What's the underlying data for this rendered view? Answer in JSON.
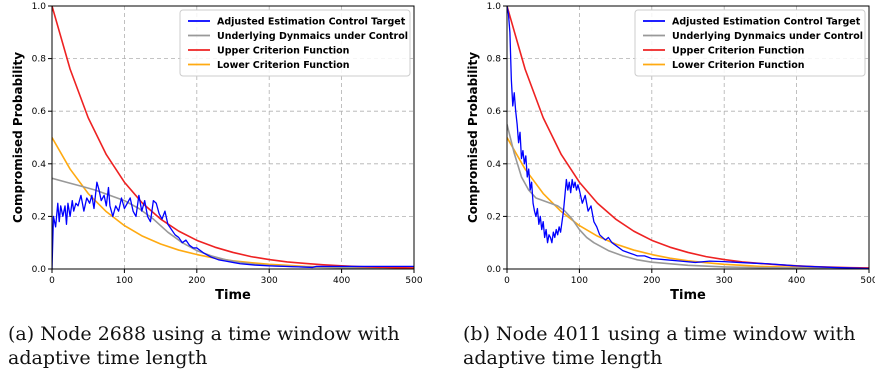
{
  "colors": {
    "adjusted": "#0000ff",
    "underlying": "#999999",
    "upper": "#ee2222",
    "lower": "#ffaa11",
    "grid": "#b0b0b0"
  },
  "chart_data": [
    {
      "type": "line",
      "xlabel": "Time",
      "ylabel": "Compromised Probability",
      "xlim": [
        0,
        500
      ],
      "ylim": [
        0,
        1.0
      ],
      "xticks": [
        "0",
        "100",
        "200",
        "300",
        "400",
        "500"
      ],
      "yticks": [
        "0.0",
        "0.2",
        "0.4",
        "0.6",
        "0.8",
        "1.0"
      ],
      "grid": true,
      "legend_position": "top-right",
      "caption_line1": "(a) Node 2688 using a time window with",
      "caption_line2": "adaptive time length",
      "series": [
        {
          "name": "Adjusted Estimation Control Target",
          "color_key": "adjusted",
          "x": [
            0,
            2,
            5,
            8,
            10,
            12,
            15,
            18,
            20,
            22,
            25,
            28,
            30,
            33,
            36,
            40,
            44,
            48,
            52,
            55,
            58,
            62,
            65,
            68,
            72,
            75,
            78,
            80,
            84,
            88,
            92,
            96,
            100,
            104,
            108,
            112,
            116,
            120,
            124,
            128,
            132,
            136,
            140,
            144,
            148,
            152,
            156,
            160,
            165,
            170,
            175,
            180,
            185,
            190,
            195,
            200,
            210,
            220,
            230,
            240,
            250,
            260,
            280,
            300,
            320,
            340,
            360,
            365,
            370,
            400,
            450,
            500
          ],
          "y": [
            0.0,
            0.2,
            0.16,
            0.25,
            0.18,
            0.24,
            0.2,
            0.24,
            0.17,
            0.25,
            0.2,
            0.26,
            0.22,
            0.25,
            0.24,
            0.28,
            0.22,
            0.27,
            0.25,
            0.28,
            0.23,
            0.33,
            0.3,
            0.26,
            0.28,
            0.24,
            0.31,
            0.24,
            0.2,
            0.24,
            0.22,
            0.27,
            0.23,
            0.25,
            0.27,
            0.22,
            0.2,
            0.28,
            0.22,
            0.26,
            0.2,
            0.18,
            0.26,
            0.25,
            0.21,
            0.19,
            0.22,
            0.17,
            0.15,
            0.13,
            0.12,
            0.1,
            0.11,
            0.09,
            0.08,
            0.08,
            0.06,
            0.045,
            0.035,
            0.03,
            0.025,
            0.02,
            0.015,
            0.012,
            0.01,
            0.008,
            0.006,
            0.01,
            0.01,
            0.01,
            0.01,
            0.01
          ]
        },
        {
          "name": "Underlying Dynmaics under Control",
          "color_key": "underlying",
          "x": [
            0,
            20,
            40,
            60,
            80,
            100,
            120,
            140,
            160,
            180,
            200,
            220,
            240,
            260,
            280,
            300,
            350,
            400,
            450,
            500
          ],
          "y": [
            0.345,
            0.33,
            0.315,
            0.3,
            0.28,
            0.26,
            0.23,
            0.19,
            0.14,
            0.1,
            0.07,
            0.05,
            0.035,
            0.025,
            0.018,
            0.013,
            0.008,
            0.005,
            0.004,
            0.003
          ]
        },
        {
          "name": "Upper Criterion Function",
          "color_key": "upper",
          "x": [
            0,
            25,
            50,
            75,
            100,
            125,
            150,
            175,
            200,
            225,
            250,
            275,
            300,
            325,
            350,
            375,
            400,
            425,
            450,
            475,
            500
          ],
          "y": [
            1.0,
            0.76,
            0.575,
            0.435,
            0.33,
            0.25,
            0.19,
            0.144,
            0.109,
            0.083,
            0.063,
            0.047,
            0.036,
            0.027,
            0.021,
            0.016,
            0.012,
            0.009,
            0.007,
            0.005,
            0.004
          ]
        },
        {
          "name": "Lower Criterion Function",
          "color_key": "lower",
          "x": [
            0,
            25,
            50,
            75,
            100,
            125,
            150,
            175,
            200,
            225,
            250,
            275,
            300,
            325,
            350,
            375,
            400,
            425,
            450,
            475,
            500
          ],
          "y": [
            0.5,
            0.38,
            0.287,
            0.218,
            0.165,
            0.125,
            0.095,
            0.072,
            0.055,
            0.041,
            0.031,
            0.024,
            0.018,
            0.014,
            0.01,
            0.008,
            0.006,
            0.0045,
            0.0034,
            0.0026,
            0.002
          ]
        }
      ]
    },
    {
      "type": "line",
      "xlabel": "Time",
      "ylabel": "Compromised Probability",
      "xlim": [
        0,
        500
      ],
      "ylim": [
        0,
        1.0
      ],
      "xticks": [
        "0",
        "100",
        "200",
        "300",
        "400",
        "500"
      ],
      "yticks": [
        "0.0",
        "0.2",
        "0.4",
        "0.6",
        "0.8",
        "1.0"
      ],
      "grid": true,
      "legend_position": "top-right",
      "caption_line1": "(b) Node 4011 using a time window with",
      "caption_line2": "adaptive time length",
      "series": [
        {
          "name": "Adjusted Estimation Control Target",
          "color_key": "adjusted",
          "x": [
            0,
            2,
            4,
            6,
            8,
            10,
            12,
            14,
            16,
            18,
            20,
            22,
            24,
            26,
            28,
            30,
            32,
            34,
            36,
            38,
            40,
            42,
            44,
            46,
            48,
            50,
            52,
            54,
            56,
            58,
            60,
            62,
            64,
            66,
            68,
            70,
            72,
            74,
            76,
            78,
            80,
            82,
            84,
            86,
            88,
            90,
            92,
            94,
            96,
            98,
            100,
            104,
            108,
            112,
            116,
            120,
            124,
            128,
            132,
            136,
            140,
            145,
            150,
            160,
            170,
            180,
            190,
            200,
            220,
            240,
            260,
            280,
            300,
            320,
            340,
            360,
            380,
            400,
            450,
            500
          ],
          "y": [
            1.0,
            0.97,
            0.9,
            0.72,
            0.62,
            0.67,
            0.6,
            0.55,
            0.48,
            0.52,
            0.42,
            0.45,
            0.4,
            0.43,
            0.35,
            0.38,
            0.3,
            0.33,
            0.25,
            0.22,
            0.2,
            0.23,
            0.17,
            0.2,
            0.15,
            0.18,
            0.12,
            0.15,
            0.1,
            0.13,
            0.12,
            0.1,
            0.14,
            0.12,
            0.15,
            0.13,
            0.16,
            0.14,
            0.18,
            0.22,
            0.28,
            0.34,
            0.3,
            0.33,
            0.29,
            0.34,
            0.31,
            0.33,
            0.3,
            0.32,
            0.3,
            0.25,
            0.28,
            0.22,
            0.24,
            0.18,
            0.16,
            0.13,
            0.12,
            0.11,
            0.12,
            0.1,
            0.09,
            0.07,
            0.06,
            0.05,
            0.05,
            0.04,
            0.035,
            0.03,
            0.025,
            0.03,
            0.028,
            0.025,
            0.022,
            0.02,
            0.016,
            0.012,
            0.006,
            0.002
          ]
        },
        {
          "name": "Underlying Dynmaics under Control",
          "color_key": "underlying",
          "x": [
            0,
            10,
            20,
            30,
            40,
            50,
            60,
            70,
            80,
            90,
            100,
            110,
            120,
            140,
            160,
            180,
            200,
            250,
            300,
            350,
            400,
            450,
            500
          ],
          "y": [
            0.55,
            0.44,
            0.35,
            0.3,
            0.27,
            0.26,
            0.25,
            0.24,
            0.22,
            0.19,
            0.15,
            0.12,
            0.1,
            0.07,
            0.05,
            0.035,
            0.026,
            0.014,
            0.008,
            0.005,
            0.004,
            0.003,
            0.002
          ]
        },
        {
          "name": "Upper Criterion Function",
          "color_key": "upper",
          "x": [
            0,
            25,
            50,
            75,
            100,
            125,
            150,
            175,
            200,
            225,
            250,
            275,
            300,
            325,
            350,
            375,
            400,
            425,
            450,
            475,
            500
          ],
          "y": [
            1.0,
            0.76,
            0.575,
            0.435,
            0.33,
            0.25,
            0.19,
            0.144,
            0.109,
            0.083,
            0.063,
            0.047,
            0.036,
            0.027,
            0.021,
            0.016,
            0.012,
            0.009,
            0.007,
            0.005,
            0.004
          ]
        },
        {
          "name": "Lower Criterion Function",
          "color_key": "lower",
          "x": [
            0,
            25,
            50,
            75,
            100,
            125,
            150,
            175,
            200,
            225,
            250,
            275,
            300,
            325,
            350,
            375,
            400,
            425,
            450,
            475,
            500
          ],
          "y": [
            0.5,
            0.38,
            0.287,
            0.218,
            0.165,
            0.125,
            0.095,
            0.072,
            0.055,
            0.041,
            0.031,
            0.024,
            0.018,
            0.014,
            0.01,
            0.008,
            0.006,
            0.0045,
            0.0034,
            0.0026,
            0.002
          ]
        }
      ]
    }
  ]
}
